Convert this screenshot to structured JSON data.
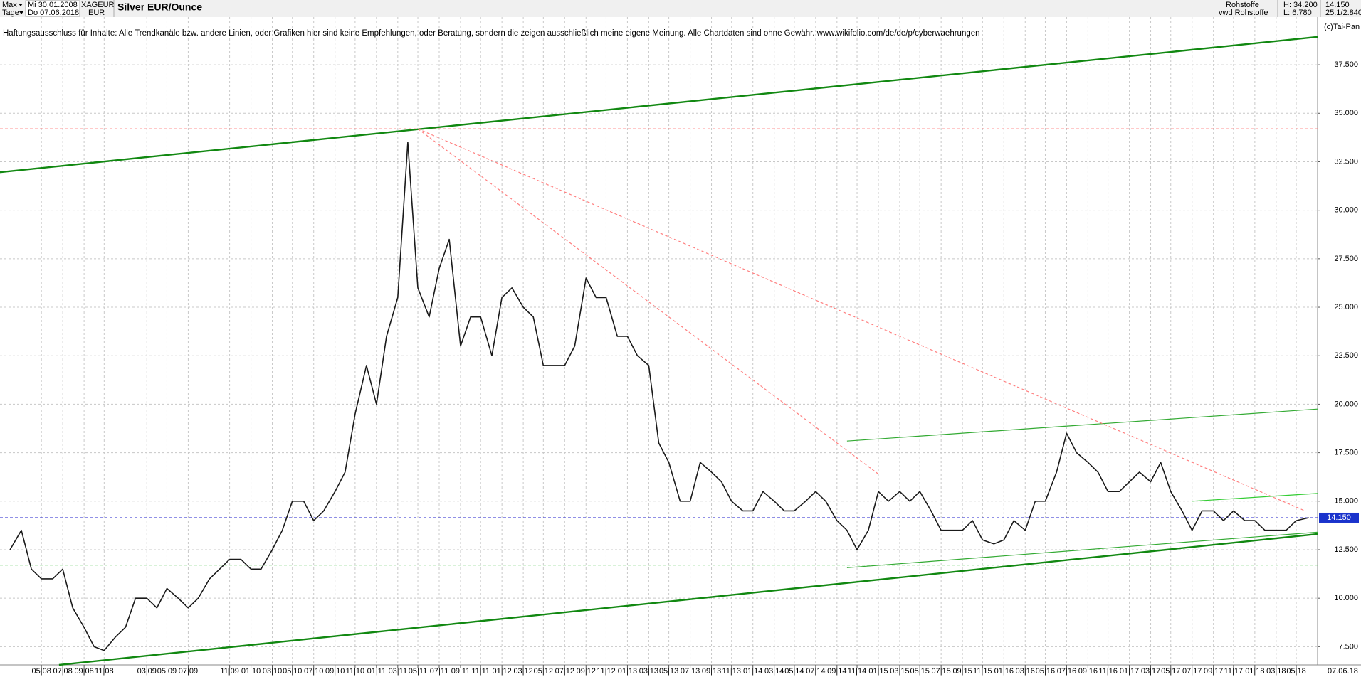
{
  "header": {
    "period_select": "Max",
    "unit_select": "Tage",
    "start_date": "Mi 30.01.2008",
    "end_date": "Do 07.06.2018",
    "symbol": "XAGEUR",
    "currency": "EUR",
    "category": "Rohstoffe",
    "source": "vwd Rohstoffe",
    "high": "H: 34.200",
    "low": "L: 6.780",
    "last": "14.150",
    "scale_info": "25.1/2.840",
    "copyright": "(c)Tai-Pan"
  },
  "chart_data": {
    "type": "line",
    "title": "Silver EUR/Ounce",
    "annotation": "Haftungsausschluss für Inhalte: Alle Trendkanäle bzw. andere Linien, oder Grafiken hier sind keine Empfehlungen, oder Beratung, sondern die zeigen ausschließlich meine eigene Meinung. Alle Chartdaten sind ohne Gewähr.  www.wikifolio.com/de/de/p/cyberwaehrungen",
    "end_date_label": "07.06.18",
    "xlim": [
      2008.0,
      2018.5
    ],
    "ylim": [
      6.56,
      39.96
    ],
    "grid": true,
    "xticks": [
      {
        "value": 2008.33,
        "label": "05|08"
      },
      {
        "value": 2008.5,
        "label": "07|08"
      },
      {
        "value": 2008.67,
        "label": "09|08"
      },
      {
        "value": 2008.83,
        "label": "11|08"
      },
      {
        "value": 2009.17,
        "label": "03|09"
      },
      {
        "value": 2009.33,
        "label": "05|09"
      },
      {
        "value": 2009.5,
        "label": "07|09"
      },
      {
        "value": 2009.83,
        "label": "11|09"
      },
      {
        "value": 2010.0,
        "label": "01|10"
      },
      {
        "value": 2010.17,
        "label": "03|10"
      },
      {
        "value": 2010.33,
        "label": "05|10"
      },
      {
        "value": 2010.5,
        "label": "07|10"
      },
      {
        "value": 2010.67,
        "label": "09|10"
      },
      {
        "value": 2010.83,
        "label": "11|10"
      },
      {
        "value": 2011.0,
        "label": "01|11"
      },
      {
        "value": 2011.17,
        "label": "03|11"
      },
      {
        "value": 2011.33,
        "label": "05|11"
      },
      {
        "value": 2011.5,
        "label": "07|11"
      },
      {
        "value": 2011.67,
        "label": "09|11"
      },
      {
        "value": 2011.83,
        "label": "11|11"
      },
      {
        "value": 2012.0,
        "label": "01|12"
      },
      {
        "value": 2012.17,
        "label": "03|12"
      },
      {
        "value": 2012.33,
        "label": "05|12"
      },
      {
        "value": 2012.5,
        "label": "07|12"
      },
      {
        "value": 2012.67,
        "label": "09|12"
      },
      {
        "value": 2012.83,
        "label": "11|12"
      },
      {
        "value": 2013.0,
        "label": "01|13"
      },
      {
        "value": 2013.17,
        "label": "03|13"
      },
      {
        "value": 2013.33,
        "label": "05|13"
      },
      {
        "value": 2013.5,
        "label": "07|13"
      },
      {
        "value": 2013.67,
        "label": "09|13"
      },
      {
        "value": 2013.83,
        "label": "11|13"
      },
      {
        "value": 2014.0,
        "label": "01|14"
      },
      {
        "value": 2014.17,
        "label": "03|14"
      },
      {
        "value": 2014.33,
        "label": "05|14"
      },
      {
        "value": 2014.5,
        "label": "07|14"
      },
      {
        "value": 2014.67,
        "label": "09|14"
      },
      {
        "value": 2014.83,
        "label": "11|14"
      },
      {
        "value": 2015.0,
        "label": "01|15"
      },
      {
        "value": 2015.17,
        "label": "03|15"
      },
      {
        "value": 2015.33,
        "label": "05|15"
      },
      {
        "value": 2015.5,
        "label": "07|15"
      },
      {
        "value": 2015.67,
        "label": "09|15"
      },
      {
        "value": 2015.83,
        "label": "11|15"
      },
      {
        "value": 2016.0,
        "label": "01|16"
      },
      {
        "value": 2016.17,
        "label": "03|16"
      },
      {
        "value": 2016.33,
        "label": "05|16"
      },
      {
        "value": 2016.5,
        "label": "07|16"
      },
      {
        "value": 2016.67,
        "label": "09|16"
      },
      {
        "value": 2016.83,
        "label": "11|16"
      },
      {
        "value": 2017.0,
        "label": "01|17"
      },
      {
        "value": 2017.17,
        "label": "03|17"
      },
      {
        "value": 2017.33,
        "label": "05|17"
      },
      {
        "value": 2017.5,
        "label": "07|17"
      },
      {
        "value": 2017.67,
        "label": "09|17"
      },
      {
        "value": 2017.83,
        "label": "11|17"
      },
      {
        "value": 2018.0,
        "label": "01|18"
      },
      {
        "value": 2018.17,
        "label": "03|18"
      },
      {
        "value": 2018.33,
        "label": "05|18"
      }
    ],
    "yticks": [
      {
        "value": 7.5,
        "label": "7.500"
      },
      {
        "value": 10,
        "label": "10.000"
      },
      {
        "value": 12.5,
        "label": "12.500"
      },
      {
        "value": 15,
        "label": "15.000"
      },
      {
        "value": 17.5,
        "label": "17.500"
      },
      {
        "value": 20,
        "label": "20.000"
      },
      {
        "value": 22.5,
        "label": "22.500"
      },
      {
        "value": 25,
        "label": "25.000"
      },
      {
        "value": 27.5,
        "label": "27.500"
      },
      {
        "value": 30,
        "label": "30.000"
      },
      {
        "value": 32.5,
        "label": "32.500"
      },
      {
        "value": 35,
        "label": "35.000"
      },
      {
        "value": 37.5,
        "label": "37.500"
      }
    ],
    "price_marker": {
      "value": 14.15,
      "label": "14.150"
    },
    "series": [
      {
        "color": "#1a1a1a",
        "x": [
          2008.08,
          2008.17,
          2008.25,
          2008.33,
          2008.42,
          2008.5,
          2008.58,
          2008.67,
          2008.75,
          2008.83,
          2008.92,
          2009,
          2009.08,
          2009.17,
          2009.25,
          2009.33,
          2009.42,
          2009.5,
          2009.58,
          2009.67,
          2009.75,
          2009.83,
          2009.92,
          2010,
          2010.08,
          2010.17,
          2010.25,
          2010.33,
          2010.42,
          2010.5,
          2010.58,
          2010.67,
          2010.75,
          2010.83,
          2010.92,
          2011,
          2011.08,
          2011.17,
          2011.25,
          2011.33,
          2011.42,
          2011.5,
          2011.58,
          2011.67,
          2011.75,
          2011.83,
          2011.92,
          2012,
          2012.08,
          2012.17,
          2012.25,
          2012.33,
          2012.42,
          2012.5,
          2012.58,
          2012.67,
          2012.75,
          2012.83,
          2012.92,
          2013,
          2013.08,
          2013.17,
          2013.25,
          2013.33,
          2013.42,
          2013.5,
          2013.58,
          2013.67,
          2013.75,
          2013.83,
          2013.92,
          2014,
          2014.08,
          2014.17,
          2014.25,
          2014.33,
          2014.42,
          2014.5,
          2014.58,
          2014.67,
          2014.75,
          2014.83,
          2014.92,
          2015,
          2015.08,
          2015.17,
          2015.25,
          2015.33,
          2015.42,
          2015.5,
          2015.58,
          2015.67,
          2015.75,
          2015.83,
          2015.92,
          2016,
          2016.08,
          2016.17,
          2016.25,
          2016.33,
          2016.42,
          2016.5,
          2016.58,
          2016.67,
          2016.75,
          2016.83,
          2016.92,
          2017,
          2017.08,
          2017.17,
          2017.25,
          2017.33,
          2017.42,
          2017.5,
          2017.58,
          2017.67,
          2017.75,
          2017.83,
          2017.92,
          2018,
          2018.08,
          2018.17,
          2018.25,
          2018.33,
          2018.43
        ],
        "values": [
          12.5,
          13.5,
          11.5,
          11.0,
          11.0,
          11.5,
          9.5,
          8.5,
          7.5,
          7.3,
          8.0,
          8.5,
          10.0,
          10.0,
          9.5,
          10.5,
          10.0,
          9.5,
          10.0,
          11.0,
          11.5,
          12.0,
          12.0,
          11.5,
          11.5,
          12.5,
          13.5,
          15.0,
          15.0,
          14.0,
          14.5,
          15.5,
          16.5,
          19.5,
          22.0,
          20.0,
          23.5,
          25.5,
          33.5,
          26.0,
          24.5,
          27.0,
          28.5,
          23.0,
          24.5,
          24.5,
          22.5,
          25.5,
          26.0,
          25.0,
          24.5,
          22.0,
          22.0,
          22.0,
          23.0,
          26.5,
          25.5,
          25.5,
          23.5,
          23.5,
          22.5,
          22.0,
          18.0,
          17.0,
          15.0,
          15.0,
          17.0,
          16.5,
          16.0,
          15.0,
          14.5,
          14.5,
          15.5,
          15.0,
          14.5,
          14.5,
          15.0,
          15.5,
          15.0,
          14.0,
          13.5,
          12.5,
          13.5,
          15.5,
          15.0,
          15.5,
          15.0,
          15.5,
          14.5,
          13.5,
          13.5,
          13.5,
          14.0,
          13.0,
          12.8,
          13.0,
          14.0,
          13.5,
          15.0,
          15.0,
          16.5,
          18.5,
          17.5,
          17.0,
          16.5,
          15.5,
          15.5,
          16.0,
          16.5,
          16.0,
          17.0,
          15.5,
          14.5,
          13.5,
          14.5,
          14.5,
          14.0,
          14.5,
          14.0,
          14.0,
          13.5,
          13.5,
          13.5,
          14.0,
          14.15
        ]
      }
    ],
    "hlines": [
      {
        "value": 34.2,
        "color": "#ff7070"
      },
      {
        "value": 14.15,
        "color": "#2222cc"
      },
      {
        "value": 11.7,
        "color": "#66cc66"
      }
    ],
    "trendlines": [
      {
        "x": [
          2008.0,
          2018.5
        ],
        "y": [
          31.96,
          38.94
        ],
        "color": "#118811",
        "weight": "thick",
        "style": "solid"
      },
      {
        "x": [
          2008.47,
          2018.5
        ],
        "y": [
          6.56,
          13.31
        ],
        "color": "#118811",
        "weight": "thick",
        "style": "solid"
      },
      {
        "x": [
          2014.75,
          2018.5
        ],
        "y": [
          11.57,
          13.4
        ],
        "color": "#33aa33",
        "weight": "thin",
        "style": "solid"
      },
      {
        "x": [
          2014.75,
          2018.5
        ],
        "y": [
          18.1,
          19.75
        ],
        "color": "#33aa33",
        "weight": "thin",
        "style": "solid"
      },
      {
        "x": [
          2017.5,
          2018.5
        ],
        "y": [
          15.0,
          15.4
        ],
        "color": "#33cc33",
        "weight": "thin",
        "style": "solid"
      },
      {
        "x": [
          2011.33,
          2015.0
        ],
        "y": [
          34.2,
          16.4
        ],
        "color": "#ff8080",
        "weight": "thin",
        "style": "dashed"
      },
      {
        "x": [
          2011.33,
          2018.4
        ],
        "y": [
          34.2,
          14.5
        ],
        "color": "#ff8080",
        "weight": "thin",
        "style": "dashed"
      }
    ]
  }
}
